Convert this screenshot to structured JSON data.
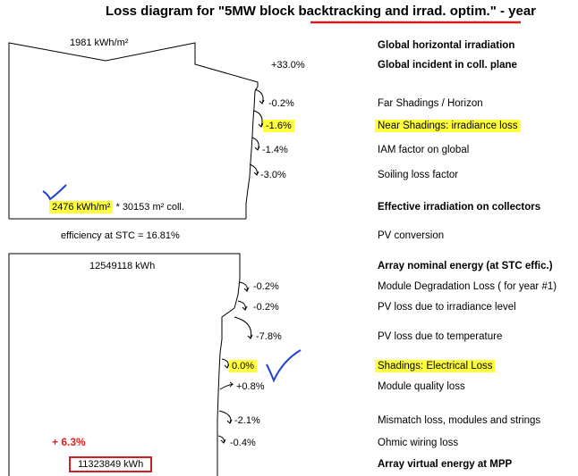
{
  "title": {
    "prefix": "Loss diagram for \"5MW block ",
    "emph": "backtracking and irrad. optim.\"",
    "suffix": "  -  year"
  },
  "irradiation": {
    "ghi": "1981 kWh/m²",
    "incident_gain": "+33.0%",
    "far_shading": "-0.2%",
    "near_shading": "-1.6%",
    "iam": "-1.4%",
    "soiling": "-3.0%",
    "effective_value": "2476 kWh/m²",
    "effective_rest": " * 30153 m² coll.",
    "efficiency": "efficiency at STC = 16.81%"
  },
  "array": {
    "nominal": "12549118 kWh",
    "degradation": "-0.2%",
    "irradiance_level": "-0.2%",
    "temperature": "-7.8%",
    "electrical_shading": "0.0%",
    "module_quality": "+0.8%",
    "mismatch": "-2.1%",
    "ohmic": "-0.4%",
    "virtual_energy": "11323849 kWh",
    "annotation": "+ 6.3%"
  },
  "labels": {
    "ghi": "Global horizontal irradiation",
    "incident": "Global incident in coll. plane",
    "far_shading": "Far Shadings / Horizon",
    "near_shading": "Near Shadings: irradiance loss",
    "iam": "IAM factor on global",
    "soiling": "Soiling loss factor",
    "effective": "Effective irradiation on collectors",
    "pv_conversion": "PV conversion",
    "array_nominal": "Array nominal energy (at STC effic.)",
    "degradation": "Module Degradation Loss ( for year #1)",
    "irradiance_level": "PV loss due to irradiance level",
    "temperature": "PV loss due to temperature",
    "electrical_shading": "Shadings: Electrical Loss",
    "module_quality": "Module quality loss",
    "mismatch": "Mismatch loss, modules and strings",
    "ohmic": "Ohmic wiring loss",
    "virtual_energy": "Array virtual energy at MPP"
  },
  "colors": {
    "highlight": "#ffff3c",
    "pen": "#2244cc",
    "red": "#d21e1e"
  }
}
